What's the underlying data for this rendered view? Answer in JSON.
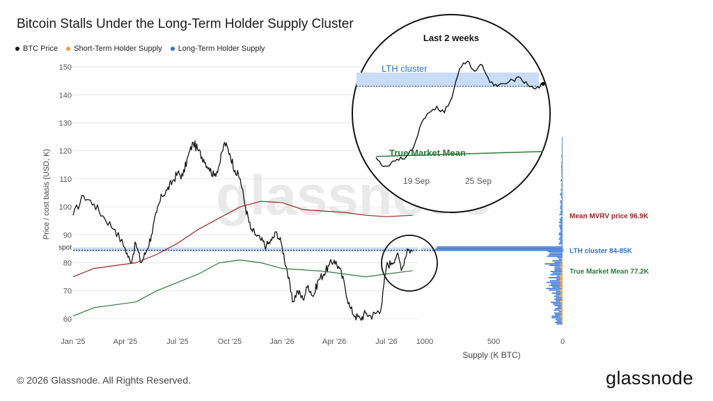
{
  "title": "Bitcoin Stalls Under the Long-Term Holder Supply Cluster",
  "legend": [
    {
      "label": "BTC Price",
      "color": "#111111"
    },
    {
      "label": "Short-Term Holder Supply",
      "color": "#f59a2b"
    },
    {
      "label": "Long-Term Holder Supply",
      "color": "#2f6fd1"
    }
  ],
  "footer": {
    "copyright": "© 2026 Glassnode. All Rights Reserved.",
    "logo": "glassnode"
  },
  "watermark": "glassnode",
  "chart_data": [
    {
      "type": "line",
      "ylabel": "Price / cost basis (USD, K)",
      "ylim": [
        57,
        152
      ],
      "yticks": [
        60,
        70,
        80,
        90,
        100,
        110,
        120,
        130,
        140,
        150
      ],
      "xticks": [
        "Jan '25",
        "Apr '25",
        "Jul '25",
        "Oct '25",
        "Jan '26",
        "Apr '26",
        "Jul '26"
      ],
      "spot_label": "spot",
      "spot_value": 84.5,
      "lth_cluster_band": [
        84,
        85.5
      ],
      "series": [
        {
          "name": "BTC Price",
          "color": "#111111",
          "points": [
            [
              0,
              97
            ],
            [
              1,
              104
            ],
            [
              2,
              101
            ],
            [
              3,
              96
            ],
            [
              4,
              92
            ],
            [
              5,
              85
            ],
            [
              5.5,
              80
            ],
            [
              6,
              87
            ],
            [
              6.5,
              80
            ],
            [
              7,
              84
            ],
            [
              7.5,
              90
            ],
            [
              8,
              98
            ],
            [
              8.5,
              104
            ],
            [
              9,
              106
            ],
            [
              9.5,
              109
            ],
            [
              10,
              112
            ],
            [
              10.5,
              111
            ],
            [
              11,
              118
            ],
            [
              11.5,
              123
            ],
            [
              12,
              120
            ],
            [
              12.5,
              117
            ],
            [
              13,
              114
            ],
            [
              13.5,
              111
            ],
            [
              14,
              115
            ],
            [
              14.5,
              123
            ],
            [
              15,
              119
            ],
            [
              15.5,
              113
            ],
            [
              16,
              110
            ],
            [
              16.5,
              100
            ],
            [
              17,
              92
            ],
            [
              17.5,
              90
            ],
            [
              18,
              88
            ],
            [
              18.5,
              86
            ],
            [
              19,
              88
            ],
            [
              19.5,
              91
            ],
            [
              20,
              86
            ],
            [
              20.5,
              77
            ],
            [
              21,
              66
            ],
            [
              21.5,
              70
            ],
            [
              22,
              67
            ],
            [
              22.5,
              72
            ],
            [
              23,
              68
            ],
            [
              23.5,
              74
            ],
            [
              24,
              76
            ],
            [
              24.5,
              79
            ],
            [
              25,
              81
            ],
            [
              25.5,
              78
            ],
            [
              26,
              72
            ],
            [
              26.5,
              64
            ],
            [
              27,
              61
            ],
            [
              27.5,
              60
            ],
            [
              28,
              62
            ],
            [
              28.5,
              61
            ],
            [
              29,
              62
            ],
            [
              29.5,
              64
            ],
            [
              30,
              79
            ],
            [
              30.5,
              80
            ],
            [
              31,
              83
            ],
            [
              31.5,
              78
            ],
            [
              32,
              85
            ],
            [
              32.5,
              84
            ]
          ]
        },
        {
          "name": "Mean MVRV price",
          "color": "#9b2222",
          "points": [
            [
              0,
              75
            ],
            [
              2,
              78
            ],
            [
              4,
              79
            ],
            [
              6,
              80
            ],
            [
              8,
              83
            ],
            [
              10,
              87
            ],
            [
              12,
              92
            ],
            [
              14,
              96
            ],
            [
              16,
              100
            ],
            [
              18,
              102
            ],
            [
              20,
              101.5
            ],
            [
              22,
              99
            ],
            [
              24,
              98.5
            ],
            [
              26,
              98
            ],
            [
              28,
              97
            ],
            [
              30,
              96.5
            ],
            [
              32.5,
              97
            ]
          ]
        },
        {
          "name": "True Market Mean",
          "color": "#2d7a3a",
          "points": [
            [
              0,
              61
            ],
            [
              2,
              64
            ],
            [
              4,
              65
            ],
            [
              6,
              66
            ],
            [
              8,
              70
            ],
            [
              10,
              73
            ],
            [
              12,
              76
            ],
            [
              14,
              80
            ],
            [
              16,
              81
            ],
            [
              18,
              80
            ],
            [
              20,
              78
            ],
            [
              22,
              77.5
            ],
            [
              24,
              77
            ],
            [
              26,
              76
            ],
            [
              28,
              75
            ],
            [
              30,
              76
            ],
            [
              32.5,
              77.2
            ]
          ]
        }
      ],
      "x_domain": [
        0,
        33
      ]
    },
    {
      "type": "bar",
      "xlabel": "Supply (K BTC)",
      "xticks": [
        "1000",
        "500",
        "0"
      ],
      "annotations": [
        {
          "text": "Mean MVRV price 96.9K",
          "color": "#9b2222",
          "value": 96.9
        },
        {
          "text": "LTH cluster 84-85K",
          "color": "#2f6fd1",
          "value": 84.5
        },
        {
          "text": "True Market Mean 77.2K",
          "color": "#2d7a3a",
          "value": 77.2
        }
      ]
    },
    {
      "type": "line",
      "title": "Last 2 weeks",
      "labels": {
        "lth_cluster": "LTH cluster",
        "true_market_mean": "True Market Mean"
      },
      "xticks": [
        "19 Sep",
        "25 Sep"
      ],
      "series": [
        {
          "name": "BTC Price",
          "color": "#111111",
          "points": [
            [
              0,
              80.5
            ],
            [
              1,
              79.8
            ],
            [
              2,
              80.1
            ],
            [
              3,
              80.3
            ],
            [
              4,
              80.6
            ],
            [
              5,
              81.4
            ],
            [
              6,
              83.3
            ],
            [
              7,
              84.1
            ],
            [
              8,
              84.6
            ],
            [
              9,
              84.1
            ],
            [
              10,
              85.3
            ],
            [
              11,
              87.6
            ],
            [
              12,
              88.2
            ],
            [
              13,
              87.4
            ],
            [
              14,
              87.9
            ],
            [
              15,
              86.5
            ],
            [
              16,
              86.2
            ],
            [
              17,
              86.4
            ],
            [
              18,
              86.7
            ],
            [
              19,
              86.9
            ],
            [
              20,
              86.3
            ],
            [
              21,
              86.0
            ],
            [
              22,
              86.4
            ]
          ]
        },
        {
          "name": "True Market Mean",
          "color": "#2d7a3a",
          "points": [
            [
              0,
              80.6
            ],
            [
              22,
              81.0
            ]
          ]
        }
      ]
    }
  ]
}
